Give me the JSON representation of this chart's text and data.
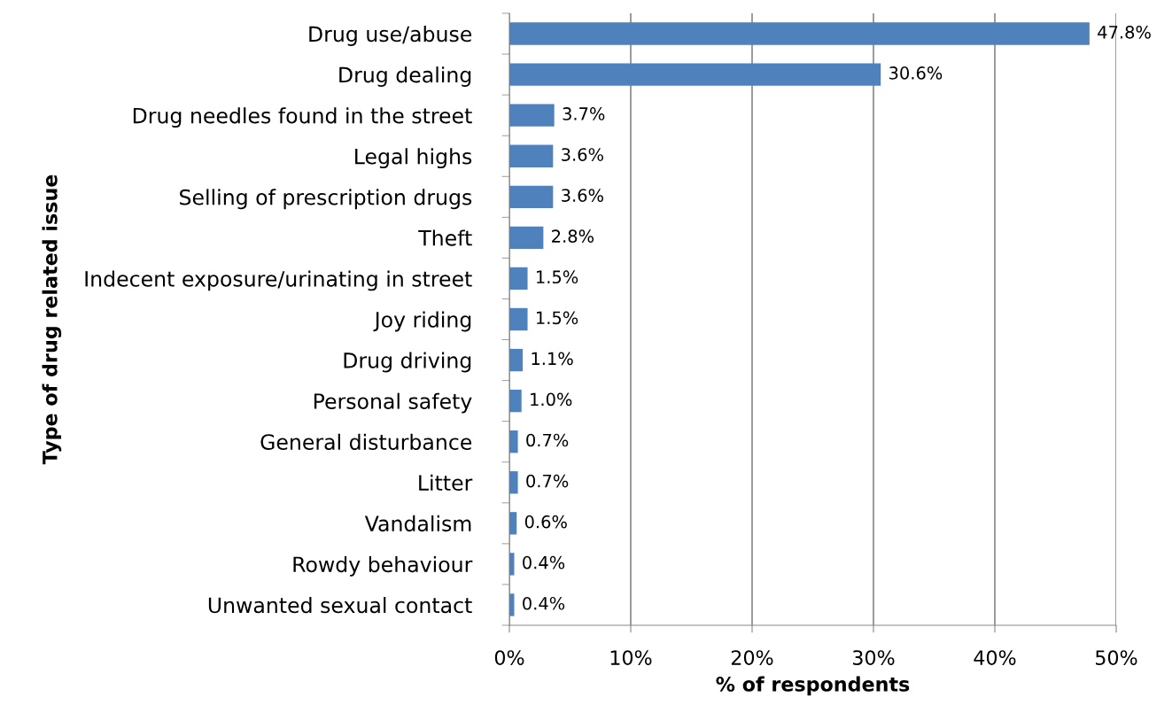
{
  "chart_data": {
    "type": "bar",
    "orientation": "horizontal",
    "xlabel": "% of respondents",
    "ylabel": "Type of drug related issue",
    "categories": [
      "Drug use/abuse",
      "Drug dealing",
      "Drug needles found in the street",
      "Legal highs",
      "Selling of prescription drugs",
      "Theft",
      "Indecent exposure/urinating in street",
      "Joy riding",
      "Drug driving",
      "Personal safety",
      "General disturbance",
      "Litter",
      "Vandalism",
      "Rowdy behaviour",
      "Unwanted sexual contact"
    ],
    "values": [
      47.8,
      30.6,
      3.7,
      3.6,
      3.6,
      2.8,
      1.5,
      1.5,
      1.1,
      1.0,
      0.7,
      0.7,
      0.6,
      0.4,
      0.4
    ],
    "value_labels": [
      "47.8%",
      "30.6%",
      "3.7%",
      "3.6%",
      "3.6%",
      "2.8%",
      "1.5%",
      "1.5%",
      "1.1%",
      "1.0%",
      "0.7%",
      "0.7%",
      "0.6%",
      "0.4%",
      "0.4%"
    ],
    "color": "#4f81bd",
    "xlim": [
      0,
      50
    ],
    "xticks": [
      {
        "value": 0,
        "label": "0%"
      },
      {
        "value": 10,
        "label": "10%"
      },
      {
        "value": 20,
        "label": "20%"
      },
      {
        "value": 30,
        "label": "30%"
      },
      {
        "value": 40,
        "label": "40%"
      },
      {
        "value": 50,
        "label": "50%"
      }
    ],
    "grid": "x",
    "legend": false
  }
}
